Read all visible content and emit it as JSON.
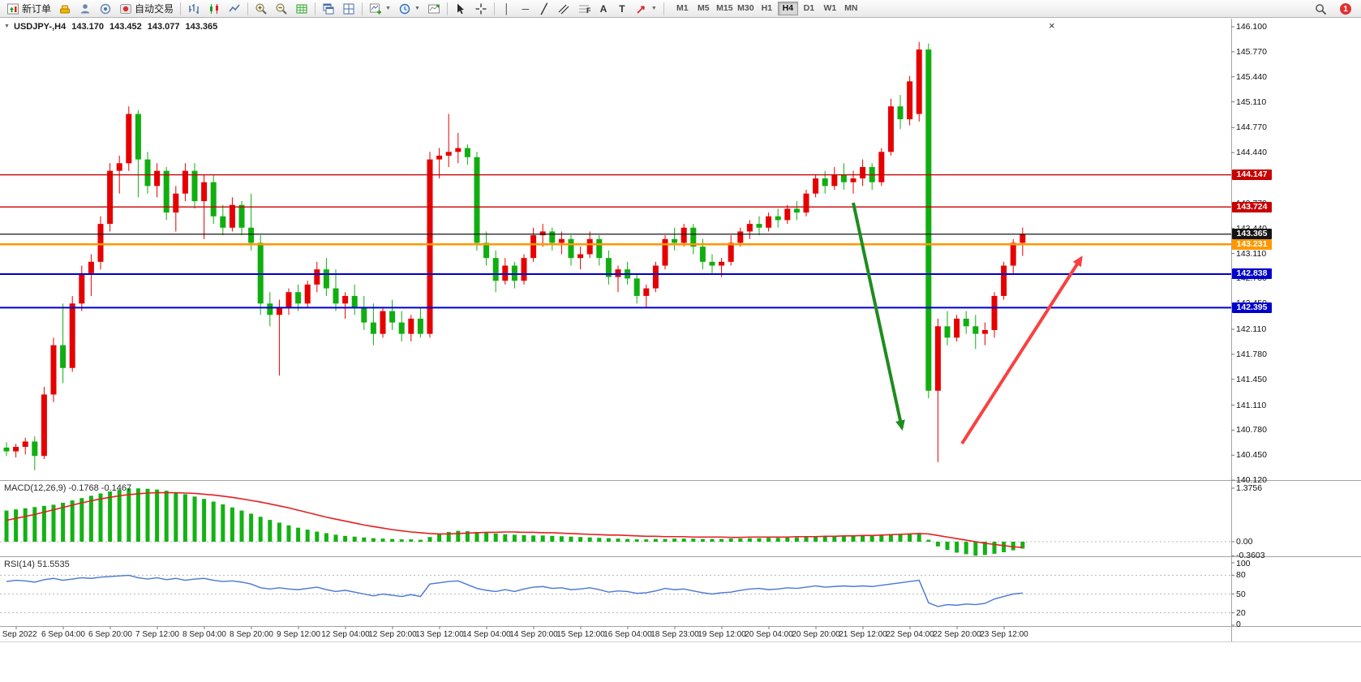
{
  "toolbar": {
    "new_order_label": "新订单",
    "autotrading_label": "自动交易",
    "timeframes": [
      "M1",
      "M5",
      "M15",
      "M30",
      "H1",
      "H4",
      "D1",
      "W1",
      "MN"
    ],
    "active_timeframe": "H4",
    "notification_count": "1",
    "tool_glyphs": {
      "vertical": "│",
      "horizontal": "─",
      "trend": "╱",
      "text": "A",
      "label": "T"
    },
    "icons": [
      "new-order-icon",
      "gold-icon",
      "profile-icon",
      "community-icon",
      "autotrading-icon",
      "bar-chart-icon",
      "candlestick-chart-icon",
      "line-chart-icon",
      "zoom-in-icon",
      "zoom-out-icon",
      "grid-icon",
      "cascade-windows-icon",
      "tile-windows-icon",
      "new-chart-icon",
      "period-clock-icon",
      "chart-shift-icon",
      "cursor-icon",
      "crosshair-icon",
      "vertical-line-icon",
      "horizontal-line-icon",
      "trendline-icon",
      "channel-icon",
      "fibonacci-icon",
      "text-icon",
      "text-label-icon",
      "arrows-icon",
      "search-icon",
      "notification-badge"
    ]
  },
  "header": {
    "symbol_period": "USDJPY-,H4",
    "open": "143.170",
    "high": "143.452",
    "low": "143.077",
    "close": "143.365",
    "dropdown_glyph": "▼",
    "close_glyph": "×"
  },
  "price_axis": {
    "gridlines": [
      "146.100",
      "145.770",
      "145.440",
      "145.110",
      "144.770",
      "144.440",
      "144.110",
      "143.770",
      "143.440",
      "143.110",
      "142.780",
      "142.450",
      "142.110",
      "141.780",
      "141.450",
      "141.110",
      "140.780",
      "140.450",
      "140.120"
    ],
    "levels": [
      {
        "label": "144.147",
        "price": 144.147,
        "color": "#c80000",
        "width": 1.4
      },
      {
        "label": "143.724",
        "price": 143.724,
        "color": "#c80000",
        "width": 1.4
      },
      {
        "label": "143.365",
        "price": 143.365,
        "color": "#141414",
        "width": 1.2
      },
      {
        "label": "143.231",
        "price": 143.231,
        "color": "#ff9800",
        "width": 2.4
      },
      {
        "label": "142.838",
        "price": 142.838,
        "color": "#0000cd",
        "width": 2.0
      },
      {
        "label": "142.395",
        "price": 142.395,
        "color": "#0000cd",
        "width": 2.0
      }
    ]
  },
  "chart_data": {
    "type": "candlestick",
    "symbol": "USDJPY-",
    "timeframe": "H4",
    "price_range": [
      140.12,
      146.1
    ],
    "colors": {
      "bull": "#e60000",
      "bear": "#10ae10",
      "macd_hist": "#13b213",
      "macd_signal": "#e32020",
      "rsi_line": "#4a77d4"
    },
    "candles_ohlc": [
      [
        140.55,
        140.62,
        140.44,
        140.5
      ],
      [
        140.5,
        140.6,
        140.42,
        140.56
      ],
      [
        140.56,
        140.68,
        140.46,
        140.63
      ],
      [
        140.63,
        140.7,
        140.25,
        140.44
      ],
      [
        140.44,
        141.35,
        140.4,
        141.25
      ],
      [
        141.25,
        142.0,
        141.15,
        141.9
      ],
      [
        141.9,
        142.45,
        141.4,
        141.6
      ],
      [
        141.6,
        142.55,
        141.55,
        142.45
      ],
      [
        142.45,
        142.95,
        142.35,
        142.85
      ],
      [
        142.85,
        143.1,
        142.55,
        143.0
      ],
      [
        143.0,
        143.6,
        142.9,
        143.5
      ],
      [
        143.5,
        144.3,
        143.4,
        144.2
      ],
      [
        144.2,
        144.4,
        143.9,
        144.3
      ],
      [
        144.3,
        145.05,
        144.2,
        144.95
      ],
      [
        144.95,
        145.0,
        143.85,
        144.35
      ],
      [
        144.35,
        144.45,
        143.9,
        144.0
      ],
      [
        144.0,
        144.3,
        143.85,
        144.2
      ],
      [
        144.2,
        144.25,
        143.55,
        143.65
      ],
      [
        143.65,
        144.0,
        143.4,
        143.9
      ],
      [
        143.9,
        144.3,
        143.8,
        144.2
      ],
      [
        144.2,
        144.3,
        143.7,
        143.8
      ],
      [
        143.8,
        144.15,
        143.3,
        144.05
      ],
      [
        144.05,
        144.15,
        143.5,
        143.6
      ],
      [
        143.6,
        143.75,
        143.35,
        143.45
      ],
      [
        143.45,
        143.85,
        143.4,
        143.75
      ],
      [
        143.75,
        143.8,
        143.35,
        143.45
      ],
      [
        143.45,
        143.9,
        143.15,
        143.25
      ],
      [
        143.25,
        143.35,
        142.3,
        142.45
      ],
      [
        142.45,
        142.6,
        142.15,
        142.3
      ],
      [
        142.3,
        142.5,
        141.5,
        142.4
      ],
      [
        142.4,
        142.65,
        142.3,
        142.6
      ],
      [
        142.6,
        142.7,
        142.35,
        142.45
      ],
      [
        142.45,
        142.75,
        142.4,
        142.7
      ],
      [
        142.7,
        143.0,
        142.6,
        142.9
      ],
      [
        142.9,
        143.05,
        142.55,
        142.65
      ],
      [
        142.65,
        142.9,
        142.35,
        142.45
      ],
      [
        142.45,
        142.6,
        142.25,
        142.55
      ],
      [
        142.55,
        142.7,
        142.3,
        142.4
      ],
      [
        142.4,
        142.55,
        142.1,
        142.2
      ],
      [
        142.2,
        142.45,
        141.9,
        142.05
      ],
      [
        142.05,
        142.4,
        142.0,
        142.35
      ],
      [
        142.35,
        142.5,
        142.1,
        142.2
      ],
      [
        142.2,
        142.35,
        141.95,
        142.05
      ],
      [
        142.05,
        142.3,
        141.95,
        142.25
      ],
      [
        142.25,
        142.4,
        142.0,
        142.05
      ],
      [
        142.05,
        144.45,
        142.0,
        144.35
      ],
      [
        144.35,
        144.5,
        144.1,
        144.4
      ],
      [
        144.4,
        144.95,
        144.25,
        144.45
      ],
      [
        144.45,
        144.7,
        144.3,
        144.5
      ],
      [
        144.5,
        144.55,
        144.28,
        144.38
      ],
      [
        144.38,
        144.45,
        143.15,
        143.25
      ],
      [
        143.25,
        143.4,
        142.95,
        143.05
      ],
      [
        143.05,
        143.15,
        142.6,
        142.75
      ],
      [
        142.75,
        143.05,
        142.7,
        142.95
      ],
      [
        142.95,
        143.0,
        142.65,
        142.75
      ],
      [
        142.75,
        143.1,
        142.7,
        143.05
      ],
      [
        143.05,
        143.45,
        143.0,
        143.35
      ],
      [
        143.35,
        143.5,
        143.2,
        143.4
      ],
      [
        143.4,
        143.45,
        143.15,
        143.25
      ],
      [
        143.25,
        143.4,
        143.1,
        143.3
      ],
      [
        143.3,
        143.35,
        142.95,
        143.05
      ],
      [
        143.05,
        143.2,
        142.9,
        143.1
      ],
      [
        143.1,
        143.4,
        143.05,
        143.3
      ],
      [
        143.3,
        143.35,
        142.95,
        143.05
      ],
      [
        143.05,
        143.15,
        142.7,
        142.8
      ],
      [
        142.8,
        142.95,
        142.6,
        142.9
      ],
      [
        142.9,
        143.0,
        142.7,
        142.78
      ],
      [
        142.78,
        142.85,
        142.45,
        142.55
      ],
      [
        142.55,
        142.7,
        142.4,
        142.65
      ],
      [
        142.65,
        143.0,
        142.6,
        142.95
      ],
      [
        142.95,
        143.35,
        142.9,
        143.3
      ],
      [
        143.3,
        143.45,
        143.15,
        143.25
      ],
      [
        143.25,
        143.5,
        143.2,
        143.45
      ],
      [
        143.45,
        143.5,
        143.1,
        143.2
      ],
      [
        143.2,
        143.3,
        142.9,
        143.0
      ],
      [
        143.0,
        143.1,
        142.85,
        142.95
      ],
      [
        142.95,
        143.05,
        142.8,
        143.0
      ],
      [
        143.0,
        143.35,
        142.95,
        143.25
      ],
      [
        143.25,
        143.45,
        143.2,
        143.4
      ],
      [
        143.4,
        143.55,
        143.3,
        143.5
      ],
      [
        143.5,
        143.6,
        143.35,
        143.45
      ],
      [
        143.45,
        143.65,
        143.4,
        143.6
      ],
      [
        143.6,
        143.7,
        143.45,
        143.55
      ],
      [
        143.55,
        143.75,
        143.5,
        143.7
      ],
      [
        143.7,
        143.8,
        143.55,
        143.65
      ],
      [
        143.65,
        143.95,
        143.6,
        143.9
      ],
      [
        143.9,
        144.15,
        143.85,
        144.1
      ],
      [
        144.1,
        144.2,
        143.9,
        144.0
      ],
      [
        144.0,
        144.25,
        143.95,
        144.15
      ],
      [
        144.15,
        144.3,
        143.95,
        144.05
      ],
      [
        144.05,
        144.2,
        143.9,
        144.1
      ],
      [
        144.1,
        144.35,
        144.0,
        144.25
      ],
      [
        144.25,
        144.3,
        143.95,
        144.05
      ],
      [
        144.05,
        144.5,
        144.0,
        144.45
      ],
      [
        144.45,
        145.15,
        144.4,
        145.05
      ],
      [
        145.05,
        145.2,
        144.75,
        144.88
      ],
      [
        144.88,
        145.45,
        144.8,
        145.38
      ],
      [
        144.95,
        145.9,
        144.85,
        145.8
      ],
      [
        145.8,
        145.88,
        141.2,
        141.3
      ],
      [
        141.3,
        142.25,
        140.36,
        142.15
      ],
      [
        142.15,
        142.35,
        141.9,
        142.0
      ],
      [
        142.0,
        142.3,
        141.95,
        142.25
      ],
      [
        142.25,
        142.35,
        142.05,
        142.15
      ],
      [
        142.15,
        142.3,
        141.85,
        142.05
      ],
      [
        142.05,
        142.2,
        141.9,
        142.1
      ],
      [
        142.1,
        142.6,
        142.0,
        142.55
      ],
      [
        142.55,
        143.0,
        142.5,
        142.95
      ],
      [
        142.95,
        143.3,
        142.85,
        143.25
      ],
      [
        143.25,
        143.452,
        143.077,
        143.365
      ]
    ],
    "time_labels": [
      "5 Sep 2022",
      "6 Sep 04:00",
      "6 Sep 20:00",
      "7 Sep 12:00",
      "8 Sep 04:00",
      "8 Sep 20:00",
      "9 Sep 12:00",
      "12 Sep 04:00",
      "12 Sep 20:00",
      "13 Sep 12:00",
      "14 Sep 04:00",
      "14 Sep 20:00",
      "15 Sep 12:00",
      "16 Sep 04:00",
      "18 Sep 23:00",
      "19 Sep 12:00",
      "20 Sep 04:00",
      "20 Sep 20:00",
      "21 Sep 12:00",
      "22 Sep 04:00",
      "22 Sep 20:00",
      "23 Sep 12:00"
    ],
    "macd": {
      "display": "MACD(12,26,9) -0.1768 -0.1467",
      "params": "12,26,9",
      "main_value": -0.1768,
      "signal_value": -0.1467,
      "axis": [
        "1.3756",
        "0.00",
        "-0.3603"
      ],
      "range": [
        -0.3603,
        1.3756
      ],
      "hist": [
        0.8,
        0.83,
        0.86,
        0.89,
        0.92,
        0.95,
        1.0,
        1.06,
        1.12,
        1.18,
        1.24,
        1.29,
        1.33,
        1.37,
        1.37,
        1.36,
        1.34,
        1.31,
        1.27,
        1.22,
        1.16,
        1.1,
        1.03,
        0.96,
        0.88,
        0.8,
        0.72,
        0.64,
        0.56,
        0.49,
        0.42,
        0.36,
        0.31,
        0.26,
        0.22,
        0.18,
        0.15,
        0.13,
        0.11,
        0.09,
        0.08,
        0.07,
        0.06,
        0.06,
        0.05,
        0.12,
        0.19,
        0.25,
        0.28,
        0.27,
        0.25,
        0.23,
        0.21,
        0.19,
        0.18,
        0.17,
        0.16,
        0.16,
        0.15,
        0.14,
        0.13,
        0.12,
        0.11,
        0.1,
        0.09,
        0.08,
        0.07,
        0.06,
        0.06,
        0.07,
        0.07,
        0.08,
        0.08,
        0.08,
        0.07,
        0.07,
        0.07,
        0.08,
        0.08,
        0.09,
        0.09,
        0.1,
        0.1,
        0.11,
        0.11,
        0.12,
        0.12,
        0.13,
        0.13,
        0.14,
        0.14,
        0.15,
        0.15,
        0.16,
        0.17,
        0.18,
        0.19,
        0.21,
        0.05,
        -0.12,
        -0.21,
        -0.28,
        -0.32,
        -0.36,
        -0.34,
        -0.31,
        -0.27,
        -0.22,
        -0.1768
      ],
      "signal": [
        0.55,
        0.6,
        0.65,
        0.7,
        0.76,
        0.82,
        0.88,
        0.94,
        1.0,
        1.05,
        1.1,
        1.14,
        1.18,
        1.21,
        1.23,
        1.25,
        1.26,
        1.26,
        1.26,
        1.25,
        1.24,
        1.22,
        1.2,
        1.17,
        1.14,
        1.1,
        1.06,
        1.02,
        0.97,
        0.92,
        0.87,
        0.81,
        0.75,
        0.69,
        0.63,
        0.58,
        0.53,
        0.48,
        0.43,
        0.39,
        0.35,
        0.31,
        0.28,
        0.25,
        0.23,
        0.21,
        0.2,
        0.2,
        0.21,
        0.22,
        0.23,
        0.24,
        0.24,
        0.25,
        0.25,
        0.24,
        0.24,
        0.23,
        0.23,
        0.22,
        0.21,
        0.2,
        0.19,
        0.18,
        0.17,
        0.17,
        0.16,
        0.15,
        0.14,
        0.14,
        0.13,
        0.13,
        0.13,
        0.12,
        0.12,
        0.12,
        0.12,
        0.11,
        0.11,
        0.12,
        0.12,
        0.12,
        0.12,
        0.12,
        0.13,
        0.13,
        0.13,
        0.14,
        0.14,
        0.15,
        0.15,
        0.16,
        0.16,
        0.17,
        0.18,
        0.19,
        0.2,
        0.21,
        0.2,
        0.16,
        0.12,
        0.08,
        0.04,
        0.0,
        -0.04,
        -0.07,
        -0.1,
        -0.13,
        -0.1467
      ]
    },
    "rsi": {
      "display": "RSI(14) 51.5535",
      "period": 14,
      "value": 51.5535,
      "axis": [
        "100",
        "80",
        "50",
        "20",
        "0"
      ],
      "levels": [
        80,
        50,
        20
      ],
      "line": [
        70,
        72,
        71,
        69,
        73,
        75,
        72,
        74,
        76,
        75,
        77,
        78,
        79,
        80,
        76,
        74,
        76,
        73,
        75,
        72,
        74,
        75,
        72,
        70,
        71,
        69,
        66,
        60,
        58,
        60,
        58,
        57,
        59,
        61,
        57,
        54,
        56,
        53,
        50,
        47,
        50,
        48,
        46,
        49,
        46,
        66,
        68,
        70,
        71,
        65,
        59,
        56,
        54,
        57,
        54,
        58,
        61,
        62,
        59,
        60,
        57,
        58,
        60,
        57,
        53,
        55,
        54,
        51,
        52,
        55,
        59,
        57,
        58,
        55,
        52,
        50,
        52,
        53,
        56,
        58,
        59,
        57,
        58,
        60,
        59,
        61,
        63,
        61,
        62,
        63,
        62,
        63,
        62,
        64,
        66,
        68,
        70,
        72,
        36,
        30,
        33,
        32,
        34,
        33,
        35,
        42,
        46,
        50,
        51.55
      ]
    }
  },
  "annotations": {
    "arrows": [
      {
        "name": "green-down-arrow",
        "from": [
          1052,
          250
        ],
        "to": [
          1112,
          528
        ],
        "color": "#1e8c1e",
        "width": 4
      },
      {
        "name": "red-up-arrow",
        "from": [
          1186,
          547
        ],
        "to": [
          1333,
          318
        ],
        "color": "#f94141",
        "width": 4
      }
    ]
  }
}
